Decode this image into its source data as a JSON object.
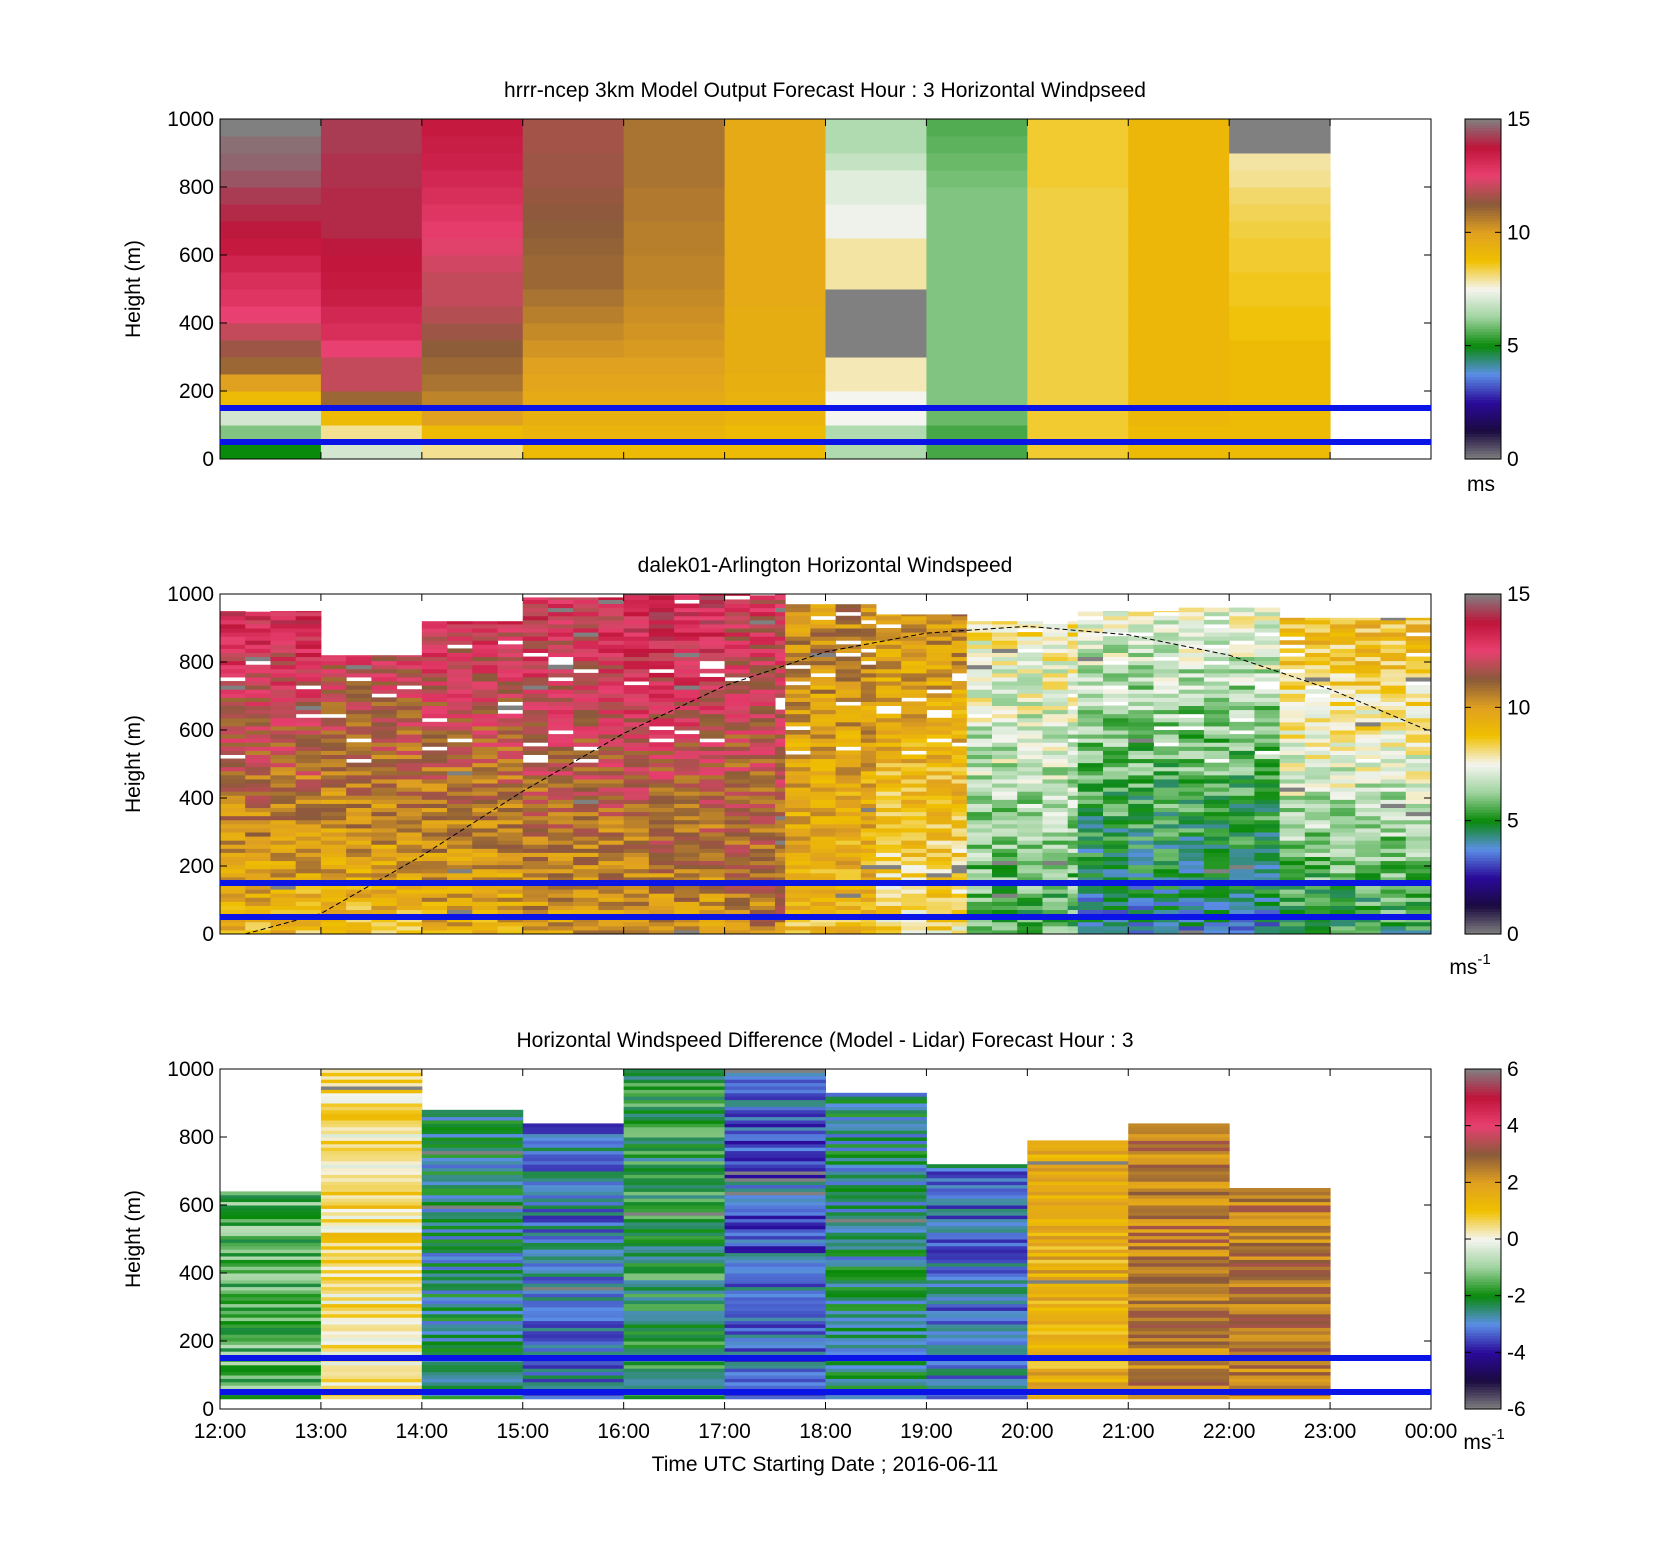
{
  "figure": {
    "xlabel": "Time UTC  Starting Date ; 2016-06-11",
    "xtick_labels": [
      "12:00",
      "13:00",
      "14:00",
      "15:00",
      "16:00",
      "17:00",
      "18:00",
      "19:00",
      "20:00",
      "21:00",
      "22:00",
      "23:00",
      "00:00"
    ]
  },
  "colors": {
    "windspeed_stops": [
      "#808080",
      "#1a0a40",
      "#2a0a9a",
      "#5b8fe6",
      "#0a8a0a",
      "#9fd39f",
      "#f5f5f0",
      "#f0c000",
      "#e0a020",
      "#8a5a3a",
      "#e84070",
      "#c0143a",
      "#808080"
    ],
    "difference_stops": [
      "#808080",
      "#1a0a40",
      "#2a0a9a",
      "#5b8fe6",
      "#0a8a0a",
      "#9fd39f",
      "#f5f5f0",
      "#f0c000",
      "#e0a020",
      "#8a5a3a",
      "#e84070",
      "#c0143a",
      "#808080"
    ],
    "reference_lines": "#0a14e6"
  },
  "chart_data": [
    {
      "type": "heatmap",
      "title": "hrrr-ncep 3km Model Output   Forecast Hour : 3 Horizontal Windpseed",
      "ylabel": "Height (m)",
      "ylim": [
        0,
        1000
      ],
      "yticks": [
        0,
        200,
        400,
        600,
        800,
        1000
      ],
      "xlim_hours": [
        12,
        24
      ],
      "colorbar": {
        "range": [
          0,
          15
        ],
        "ticks": [
          0,
          5,
          10,
          15
        ],
        "unit": "ms"
      },
      "reference_heights_m": [
        50,
        150
      ],
      "hours": [
        "12:00",
        "13:00",
        "14:00",
        "15:00",
        "16:00",
        "17:00",
        "18:00",
        "19:00",
        "20:00",
        "21:00",
        "22:00"
      ],
      "height_levels_m": [
        25,
        75,
        125,
        175,
        225,
        275,
        325,
        375,
        425,
        475,
        525,
        575,
        625,
        675,
        725,
        775,
        825,
        875,
        925,
        975
      ],
      "windspeed_ms": [
        [
          5,
          6,
          7,
          9,
          10,
          11,
          11.5,
          12,
          12.5,
          12.8,
          13,
          13.3,
          13.6,
          13.8,
          14,
          14.2,
          14.5,
          14.7,
          14.8,
          15
        ],
        [
          7,
          8,
          9,
          11,
          12,
          12,
          12.5,
          13,
          13.2,
          13.5,
          13.6,
          13.7,
          13.8,
          14,
          14,
          14,
          14.1,
          14.1,
          14.2,
          14.2
        ],
        [
          8,
          9,
          10,
          10.5,
          10.8,
          11,
          11.2,
          11.5,
          11.8,
          12,
          12,
          12.2,
          12.4,
          12.6,
          12.8,
          13,
          13.2,
          13.4,
          13.5,
          13.6
        ],
        [
          9,
          9.2,
          9.4,
          9.6,
          9.8,
          10,
          10.2,
          10.4,
          10.6,
          10.8,
          11,
          11,
          11.1,
          11.2,
          11.3,
          11.4,
          11.5,
          11.5,
          11.6,
          11.6
        ],
        [
          9,
          9.2,
          9.4,
          9.6,
          9.8,
          10,
          10.1,
          10.2,
          10.3,
          10.4,
          10.5,
          10.5,
          10.6,
          10.6,
          10.7,
          10.7,
          10.8,
          10.8,
          10.8,
          10.8
        ],
        [
          9,
          9,
          9.2,
          9.3,
          9.4,
          9.5,
          9.5,
          9.5,
          9.5,
          9.6,
          9.6,
          9.6,
          9.6,
          9.6,
          9.6,
          9.6,
          9.6,
          9.6,
          9.6,
          9.6
        ],
        [
          6.5,
          6.5,
          7.5,
          7.5,
          7.8,
          7.8,
          15,
          15,
          15,
          15,
          7.9,
          7.9,
          7.9,
          7.4,
          7.4,
          7.2,
          7.2,
          6.8,
          6.5,
          6.5
        ],
        [
          5.5,
          5.5,
          5.8,
          6,
          6,
          6,
          6,
          6,
          6,
          6,
          6,
          6,
          6,
          6,
          6,
          6,
          5.9,
          5.8,
          5.7,
          5.6
        ],
        [
          8.5,
          8.5,
          8.5,
          8.4,
          8.4,
          8.4,
          8.4,
          8.4,
          8.4,
          8.4,
          8.4,
          8.4,
          8.4,
          8.4,
          8.4,
          8.4,
          8.5,
          8.5,
          8.5,
          8.5
        ],
        [
          9,
          9,
          9.1,
          9.1,
          9.1,
          9.1,
          9.1,
          9.1,
          9.1,
          9.1,
          9.1,
          9.1,
          9.1,
          9.1,
          9.1,
          9.1,
          9.1,
          9.1,
          9.1,
          9.1
        ],
        [
          9,
          9,
          9,
          9,
          9,
          9,
          9,
          8.7,
          8.7,
          8.6,
          8.6,
          8.5,
          8.5,
          8.4,
          8.3,
          8.2,
          8,
          7.9,
          15,
          15
        ]
      ]
    },
    {
      "type": "heatmap",
      "title": "dalek01-Arlington  Horizontal Windspeed",
      "ylabel": "Height (m)",
      "ylim": [
        0,
        1000
      ],
      "yticks": [
        0,
        200,
        400,
        600,
        800,
        1000
      ],
      "xlim_hours": [
        12,
        24
      ],
      "colorbar": {
        "range": [
          0,
          15
        ],
        "ticks": [
          0,
          5,
          10,
          15
        ],
        "unit": "ms",
        "unit_exponent": "-1"
      },
      "reference_heights_m": [
        50,
        150
      ],
      "overlay": "dashed boundary-layer height curve",
      "overlay_curve_m": [
        [
          12.25,
          0
        ],
        [
          13,
          60
        ],
        [
          14,
          230
        ],
        [
          15,
          420
        ],
        [
          16,
          590
        ],
        [
          17,
          730
        ],
        [
          18,
          830
        ],
        [
          19,
          885
        ],
        [
          20,
          905
        ],
        [
          21,
          880
        ],
        [
          22,
          820
        ],
        [
          23,
          720
        ],
        [
          24,
          595
        ]
      ],
      "blocks": [
        {
          "hours": [
            12.0,
            13.0
          ],
          "low_ms": 9,
          "high_ms": 13.5,
          "top_m": 950
        },
        {
          "hours": [
            13.0,
            14.0
          ],
          "low_ms": 9,
          "high_ms": 13,
          "top_m": 820
        },
        {
          "hours": [
            14.0,
            15.0
          ],
          "low_ms": 9.5,
          "high_ms": 13,
          "top_m": 920
        },
        {
          "hours": [
            15.0,
            16.0
          ],
          "low_ms": 10,
          "high_ms": 13,
          "top_m": 990
        },
        {
          "hours": [
            16.0,
            17.0
          ],
          "low_ms": 10,
          "high_ms": 13.5,
          "top_m": 1000
        },
        {
          "hours": [
            17.0,
            17.6
          ],
          "low_ms": 10.5,
          "high_ms": 12.5,
          "top_m": 1000
        },
        {
          "hours": [
            17.6,
            18.5
          ],
          "low_ms": 9,
          "high_ms": 10.5,
          "top_m": 970
        },
        {
          "hours": [
            18.5,
            19.4
          ],
          "low_ms": 8,
          "high_ms": 10.5,
          "top_m": 940
        },
        {
          "hours": [
            19.4,
            20.5
          ],
          "low_ms": 5.5,
          "high_ms": 8,
          "top_m": 920
        },
        {
          "hours": [
            20.5,
            21.5
          ],
          "low_ms": 4,
          "high_ms": 7.5,
          "top_m": 950
        },
        {
          "hours": [
            21.5,
            22.5
          ],
          "low_ms": 4,
          "high_ms": 7.5,
          "top_m": 960
        },
        {
          "hours": [
            22.5,
            24.0
          ],
          "low_ms": 5,
          "high_ms": 9.5,
          "top_m": 930
        }
      ]
    },
    {
      "type": "heatmap",
      "title": "Horizontal Windspeed Difference (Model - Lidar) Forecast Hour : 3",
      "ylabel": "Height (m)",
      "ylim": [
        0,
        1000
      ],
      "yticks": [
        0,
        200,
        400,
        600,
        800,
        1000
      ],
      "xlim_hours": [
        12,
        24
      ],
      "colorbar": {
        "range": [
          -6,
          6
        ],
        "ticks": [
          -6,
          -4,
          -2,
          0,
          2,
          4,
          6
        ],
        "unit": "ms",
        "unit_exponent": "-1"
      },
      "reference_heights_m": [
        50,
        150
      ],
      "hours": [
        "12:00",
        "13:00",
        "14:00",
        "15:00",
        "16:00",
        "17:00",
        "18:00",
        "19:00",
        "20:00",
        "21:00",
        "22:00"
      ],
      "column_top_m": [
        640,
        1000,
        880,
        840,
        1000,
        1000,
        930,
        720,
        790,
        840,
        650
      ],
      "mean_difference_ms": [
        -1.5,
        0.5,
        -2.5,
        -3,
        -2,
        -3.2,
        -2.5,
        -3,
        1.5,
        2.5,
        2.5
      ]
    }
  ]
}
